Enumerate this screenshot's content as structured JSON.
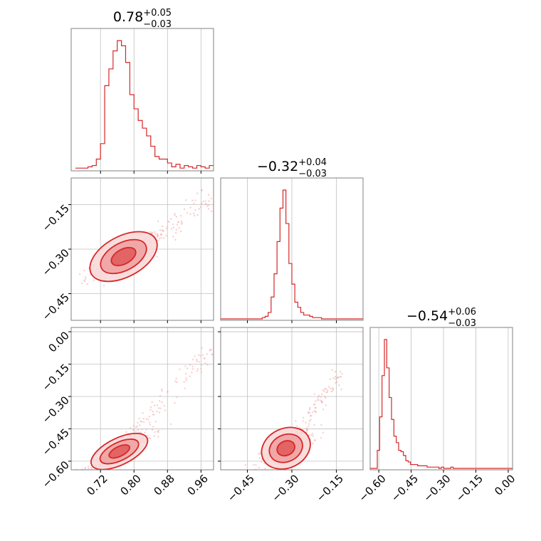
{
  "chart_data": {
    "type": "corner",
    "colors": {
      "line": "#d62728",
      "fill_light": "#f8d7d7",
      "fill_mid": "#ef9f9f",
      "fill_dark": "#e05858",
      "points": "#f2a8a8",
      "grid": "#c0c0c0",
      "axes": "#808080"
    },
    "parameters": [
      {
        "title": {
          "value": "0.78",
          "plus": "+0.05",
          "minus": "−0.03"
        },
        "range": [
          0.65,
          0.99
        ],
        "ticks": [
          0.72,
          0.8,
          0.88,
          0.96
        ],
        "tick_labels": [
          "0.72",
          "0.80",
          "0.88",
          "0.96"
        ]
      },
      {
        "title": {
          "value": "−0.32",
          "plus": "+0.04",
          "minus": "−0.03"
        },
        "range": [
          -0.54,
          -0.06
        ],
        "ticks": [
          -0.45,
          -0.3,
          -0.15
        ],
        "tick_labels": [
          "−0.45",
          "−0.30",
          "−0.15"
        ]
      },
      {
        "title": {
          "value": "−0.54",
          "plus": "+0.06",
          "minus": "−0.03"
        },
        "range": [
          -0.64,
          0.02
        ],
        "ticks": [
          -0.6,
          -0.45,
          -0.3,
          -0.15,
          0.0
        ],
        "tick_labels": [
          "−0.60",
          "−0.45",
          "−0.30",
          "−0.15",
          "0.00"
        ]
      }
    ],
    "histograms": [
      {
        "param": 0,
        "x": [
          0.665,
          0.675,
          0.685,
          0.695,
          0.705,
          0.715,
          0.725,
          0.735,
          0.745,
          0.755,
          0.765,
          0.775,
          0.785,
          0.795,
          0.805,
          0.815,
          0.825,
          0.835,
          0.845,
          0.855,
          0.865,
          0.875,
          0.885,
          0.895,
          0.905,
          0.915,
          0.925,
          0.935,
          0.945,
          0.955,
          0.965,
          0.975,
          0.985
        ],
        "values": [
          1,
          1,
          1,
          2,
          3,
          8,
          20,
          65,
          78,
          92,
          100,
          96,
          83,
          58,
          47,
          38,
          32,
          26,
          18,
          10,
          8,
          8,
          5,
          2,
          4,
          1,
          3,
          2,
          1,
          3,
          2,
          1,
          3
        ]
      },
      {
        "param": 1,
        "x": [
          -0.535,
          -0.525,
          -0.515,
          -0.505,
          -0.495,
          -0.485,
          -0.475,
          -0.465,
          -0.455,
          -0.445,
          -0.435,
          -0.425,
          -0.415,
          -0.405,
          -0.395,
          -0.385,
          -0.375,
          -0.365,
          -0.355,
          -0.345,
          -0.335,
          -0.325,
          -0.315,
          -0.305,
          -0.295,
          -0.285,
          -0.275,
          -0.265,
          -0.255,
          -0.245,
          -0.235,
          -0.225,
          -0.215,
          -0.205,
          -0.195,
          -0.185,
          -0.175,
          -0.165,
          -0.155,
          -0.145,
          -0.135,
          -0.125,
          -0.115,
          -0.105,
          -0.095,
          -0.085,
          -0.075,
          -0.065
        ],
        "values": [
          0,
          0,
          0,
          0,
          0,
          0,
          0,
          0,
          0,
          0,
          0,
          0,
          0,
          0,
          1,
          2,
          5,
          17,
          35,
          60,
          86,
          100,
          74,
          43,
          27,
          13,
          9,
          5,
          3,
          3,
          2,
          1,
          1,
          1,
          0,
          0,
          0,
          0,
          0,
          0,
          0,
          0,
          0,
          0,
          0,
          0,
          0,
          0
        ]
      },
      {
        "param": 2,
        "x": [
          -0.6345,
          -0.6235,
          -0.6125,
          -0.6015,
          -0.5905,
          -0.5795,
          -0.5685,
          -0.5575,
          -0.5465,
          -0.5355,
          -0.5245,
          -0.5135,
          -0.5025,
          -0.4915,
          -0.4805,
          -0.4695,
          -0.4585,
          -0.4475,
          -0.4365,
          -0.4255,
          -0.4145,
          -0.4035,
          -0.3925,
          -0.3815,
          -0.3705,
          -0.3595,
          -0.3485,
          -0.3375,
          -0.3265,
          -0.3155,
          -0.3045,
          -0.2935,
          -0.2825,
          -0.2715,
          -0.2605,
          -0.2495,
          -0.2385,
          -0.2275,
          -0.2165,
          -0.2055,
          -0.1945,
          -0.1835,
          -0.1725,
          -0.1615,
          -0.1505,
          -0.1395,
          -0.1285,
          -0.1175,
          -0.1065,
          -0.0955,
          -0.0845,
          -0.0735,
          -0.0625,
          -0.0515,
          -0.0405,
          -0.0295,
          -0.0185,
          -0.0075,
          0.0035,
          0.0145
        ],
        "values": [
          0,
          0,
          0,
          14,
          40,
          72,
          100,
          78,
          55,
          38,
          25,
          20,
          14,
          13,
          10,
          6,
          5,
          3,
          3,
          3,
          2,
          2,
          2,
          2,
          1,
          1,
          1,
          1,
          1,
          0,
          1,
          0,
          0,
          0,
          1,
          0,
          0,
          0,
          0,
          0,
          0,
          0,
          0,
          0,
          0,
          0,
          0,
          0,
          0,
          0,
          0,
          0,
          0,
          0,
          0,
          0,
          0,
          0,
          0,
          0
        ]
      }
    ],
    "scatter_panels": [
      {
        "x_param": 0,
        "y_param": 1,
        "center": [
          0.775,
          -0.325
        ],
        "spread": [
          0.035,
          0.03
        ],
        "corr": 0.88,
        "tail_to": [
          0.98,
          -0.13
        ]
      },
      {
        "x_param": 0,
        "y_param": 2,
        "center": [
          0.765,
          -0.555
        ],
        "spread": [
          0.03,
          0.03
        ],
        "corr": 0.95,
        "tail_to": [
          0.98,
          -0.08
        ]
      },
      {
        "x_param": 1,
        "y_param": 2,
        "center": [
          -0.32,
          -0.54
        ],
        "spread": [
          0.035,
          0.03
        ],
        "corr": 0.75,
        "tail_to": [
          -0.14,
          -0.2
        ]
      }
    ],
    "grid": true,
    "legend": "none"
  }
}
